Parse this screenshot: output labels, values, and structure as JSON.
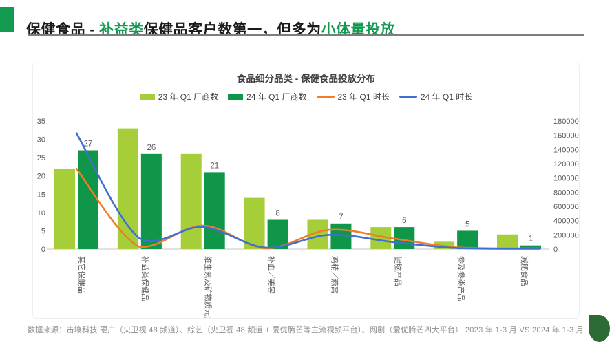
{
  "header": {
    "segments": [
      {
        "text": "保健食品 - ",
        "accent": false
      },
      {
        "text": "补益类",
        "accent": true
      },
      {
        "text": "保健品客户数第一，但多为",
        "accent": false
      },
      {
        "text": "小体量投放",
        "accent": true
      }
    ]
  },
  "page": {
    "footer": "数据来源：击壤科技 硬广（央卫视 48 频道）、综艺（央卫视 48 频道 + 爱优腾芒等主流视频平台）、网剧（爱优腾芒四大平台）  2023 年 1-3 月 VS 2024 年 1-3 月"
  },
  "colors": {
    "accent_green": "#119a50",
    "title_text": "#1a1a1a",
    "footer_text": "#8c8c8c",
    "corner_blob": "#2d6b35",
    "axis_text": "#595959",
    "baseline": "#d9d9d9"
  },
  "chart_data": {
    "type": "bar",
    "subtype": "combo-bar-line-dual-axis",
    "title": "食品细分品类 - 保健食品投放分布",
    "categories": [
      "其它保健品",
      "补益类保健品",
      "维生素及矿物质元素",
      "补血／美容",
      "鸡精／燕窝",
      "健脑产品",
      "参及参类产品",
      "减肥食品"
    ],
    "series": [
      {
        "name": "23 年 Q1 厂商数",
        "type": "bar",
        "axis": "left",
        "color": "#a6ce39",
        "values": [
          22,
          33,
          26,
          14,
          8,
          6,
          2,
          4
        ],
        "data_labels": false
      },
      {
        "name": "24 年 Q1 厂商数",
        "type": "bar",
        "axis": "left",
        "color": "#0f9648",
        "values": [
          27,
          26,
          21,
          8,
          7,
          6,
          5,
          1
        ],
        "data_labels": true
      },
      {
        "name": "23 年 Q1 时长",
        "type": "line",
        "axis": "right",
        "color": "#f07d28",
        "values": [
          1130000,
          30000,
          330000,
          10000,
          270000,
          150000,
          25000,
          10000
        ],
        "data_labels": false
      },
      {
        "name": "24 年 Q1 时长",
        "type": "line",
        "axis": "right",
        "color": "#3f6fd1",
        "values": [
          1630000,
          150000,
          310000,
          20000,
          200000,
          100000,
          15000,
          5000
        ],
        "data_labels": false
      }
    ],
    "left_axis": {
      "min": 0,
      "max": 35,
      "step": 5,
      "ticks": [
        0,
        5,
        10,
        15,
        20,
        25,
        30,
        35
      ]
    },
    "right_axis": {
      "min": 0,
      "max": 1800000,
      "step": 200000,
      "ticks": [
        0,
        200000,
        400000,
        600000,
        800000,
        1000000,
        1200000,
        1400000,
        1600000,
        1800000
      ]
    },
    "legend_position": "top",
    "grid": false
  }
}
